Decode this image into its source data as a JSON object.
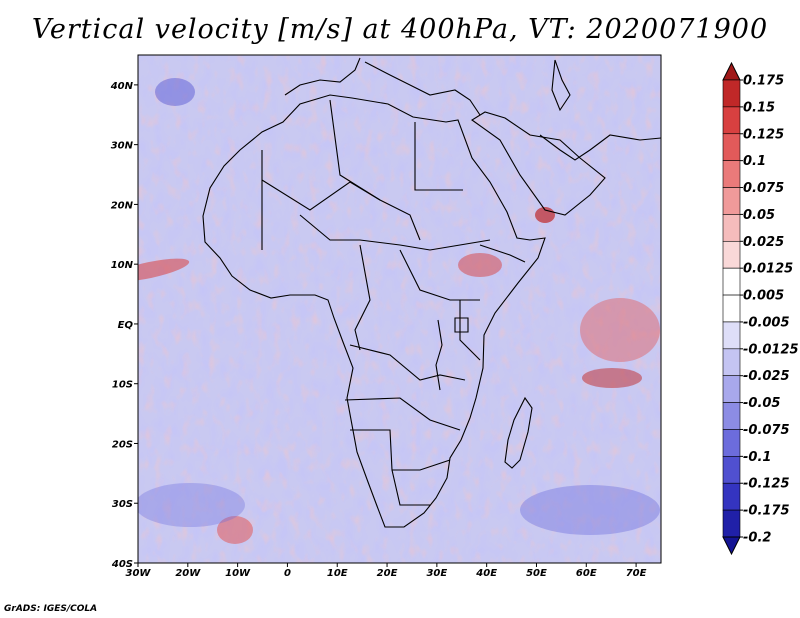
{
  "title": "Vertical velocity [m/s] at 400hPa, VT: 2020071900",
  "credit": "GrADS: IGES/COLA",
  "chart_data": {
    "type": "heatmap",
    "variable": "Vertical velocity",
    "units": "m/s",
    "level": "400hPa",
    "valid_time": "2020071900",
    "lon_range": [
      -30,
      75
    ],
    "lat_range": [
      -40,
      45
    ],
    "lon_ticks": [
      -30,
      -20,
      -10,
      0,
      10,
      20,
      30,
      40,
      50,
      60,
      70
    ],
    "lon_tick_labels": [
      "30W",
      "20W",
      "10W",
      "0",
      "10E",
      "20E",
      "30E",
      "40E",
      "50E",
      "60E",
      "70E"
    ],
    "lat_ticks": [
      40,
      30,
      20,
      10,
      0,
      -10,
      -20,
      -30,
      -40
    ],
    "lat_tick_labels": [
      "40N",
      "30N",
      "20N",
      "10N",
      "EQ",
      "10S",
      "20S",
      "30S",
      "40S"
    ],
    "colorbar": {
      "levels": [
        "0.175",
        "0.15",
        "0.125",
        "0.1",
        "0.075",
        "0.05",
        "0.025",
        "0.0125",
        "0.005",
        "-0.005",
        "-0.0125",
        "-0.025",
        "-0.05",
        "-0.075",
        "-0.1",
        "-0.125",
        "-0.175",
        "-0.2"
      ],
      "colors": [
        "#a01818",
        "#c02828",
        "#d84040",
        "#e25a5a",
        "#ea7a7a",
        "#f09a9a",
        "#f5bcbc",
        "#f9d8d8",
        "#ffffff",
        "#ffffff",
        "#dedef8",
        "#c4c4f2",
        "#a8a8ec",
        "#8c8ce4",
        "#6c6cdc",
        "#5050d0",
        "#3434c0",
        "#2020a8",
        "#141494"
      ]
    }
  }
}
